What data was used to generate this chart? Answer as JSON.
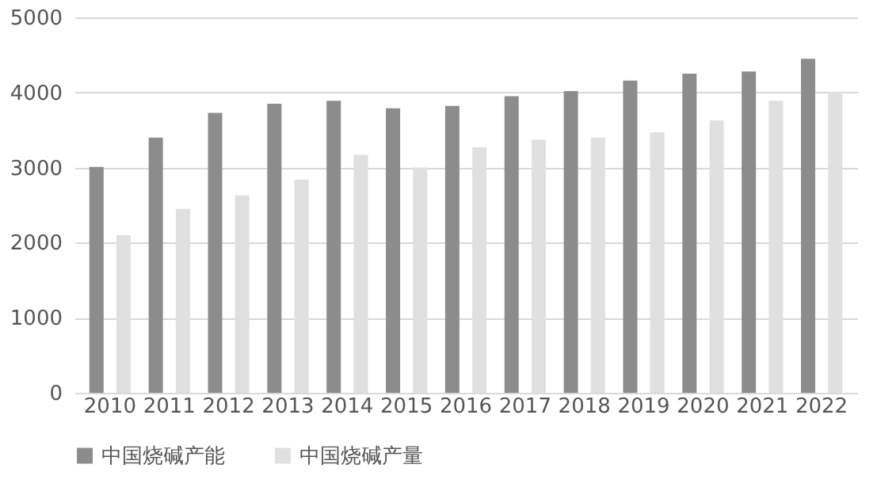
{
  "chart_data": {
    "type": "bar",
    "categories": [
      "2010",
      "2011",
      "2012",
      "2013",
      "2014",
      "2015",
      "2016",
      "2017",
      "2018",
      "2019",
      "2020",
      "2021",
      "2022"
    ],
    "series": [
      {
        "name": "中国烧碱产能",
        "color": "#8c8c8c",
        "values": [
          3010,
          3400,
          3730,
          3850,
          3890,
          3790,
          3820,
          3950,
          4020,
          4160,
          4250,
          4280,
          4450
        ]
      },
      {
        "name": "中国烧碱产量",
        "color": "#e0e0e0",
        "values": [
          2100,
          2450,
          2630,
          2840,
          3170,
          3000,
          3270,
          3370,
          3400,
          3470,
          3630,
          3890,
          4010
        ]
      }
    ],
    "ylim": [
      0,
      5000
    ],
    "yticks": [
      0,
      1000,
      2000,
      3000,
      4000,
      5000
    ],
    "grid": "y",
    "legend": "bottom"
  }
}
